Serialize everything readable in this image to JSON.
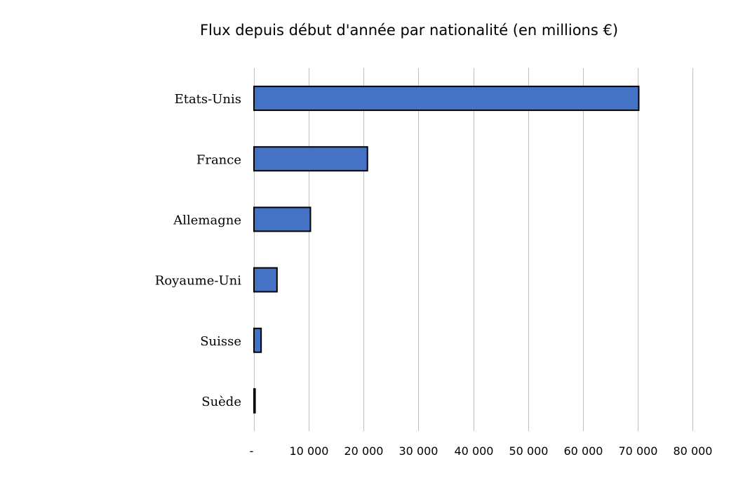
{
  "chart_data": {
    "type": "bar",
    "orientation": "horizontal",
    "title": "Flux depuis début d'année par nationalité (en millions €)",
    "xlabel": "",
    "ylabel": "",
    "categories": [
      "Etats-Unis",
      "France",
      "Allemagne",
      "Royaume-Uni",
      "Suisse",
      "Suède"
    ],
    "values": [
      70200,
      20700,
      10300,
      4200,
      1300,
      200
    ],
    "xlim": [
      0,
      80000
    ],
    "x_ticks": [
      0,
      10000,
      20000,
      30000,
      40000,
      50000,
      60000,
      70000,
      80000
    ],
    "x_tick_labels": [
      "-",
      "10 000",
      "20 000",
      "30 000",
      "40 000",
      "50 000",
      "60 000",
      "70 000",
      "80 000"
    ],
    "grid": "vertical",
    "legend": "none",
    "bar_color": "#4472c4",
    "bar_edge_color": "#000000"
  }
}
